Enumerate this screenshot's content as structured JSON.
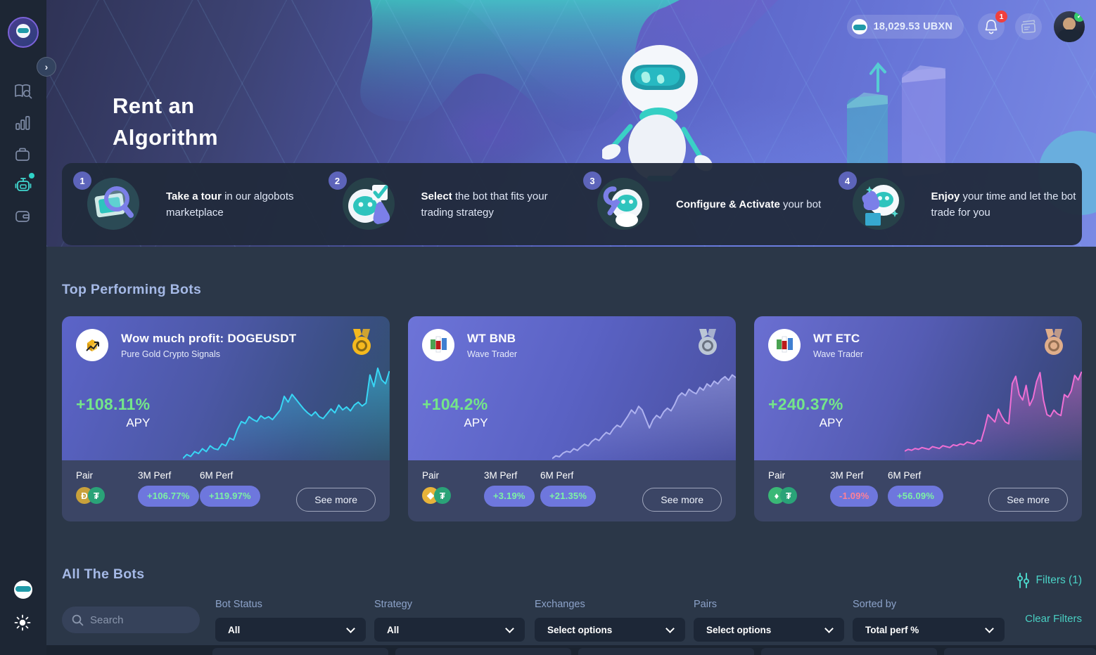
{
  "topbar": {
    "balance": "18,029.53 UBXN",
    "notification_count": "1"
  },
  "header": {
    "title_line1": "Rent an",
    "title_line2": "Algorithm"
  },
  "steps": [
    {
      "num": "1",
      "bold": "Take a tour",
      "rest": " in our algobots marketplace"
    },
    {
      "num": "2",
      "bold": "Select",
      "rest": " the bot that fits your trading strategy"
    },
    {
      "num": "3",
      "bold": "Configure & Activate",
      "rest": " your bot"
    },
    {
      "num": "4",
      "bold": "Enjoy",
      "rest": " your time and let the bot trade for you"
    }
  ],
  "top_bots": {
    "heading": "Top Performing Bots",
    "cards": [
      {
        "title": "Wow much profit: DOGEUSDT",
        "subtitle": "Pure Gold Crypto Signals",
        "apy": "+108.11%",
        "apy_label": "APY",
        "medal": "gold",
        "medal_color": "#f5b91e",
        "pair_label": "Pair",
        "m3_label": "3M Perf",
        "m6_label": "6M Perf",
        "m3": "+106.77%",
        "m6": "+119.97%",
        "see_more": "See more",
        "pair": [
          {
            "name": "doge-coin",
            "glyph": "Ð",
            "bg": "#c9a13b"
          },
          {
            "name": "usdt-coin",
            "glyph": "₮",
            "bg": "#2aa378"
          }
        ]
      },
      {
        "title": "WT BNB",
        "subtitle": "Wave Trader",
        "apy": "+104.2%",
        "apy_label": "APY",
        "medal": "silver",
        "medal_color": "#bcc7d6",
        "pair_label": "Pair",
        "m3_label": "3M Perf",
        "m6_label": "6M Perf",
        "m3": "+3.19%",
        "m6": "+21.35%",
        "see_more": "See more",
        "pair": [
          {
            "name": "bnb-coin",
            "glyph": "◆",
            "bg": "#e8b33a"
          },
          {
            "name": "usdt-coin",
            "glyph": "₮",
            "bg": "#2aa378"
          }
        ]
      },
      {
        "title": "WT ETC",
        "subtitle": "Wave Trader",
        "apy": "+240.37%",
        "apy_label": "APY",
        "medal": "bronze",
        "medal_color": "#e0ae8b",
        "pair_label": "Pair",
        "m3_label": "3M Perf",
        "m6_label": "6M Perf",
        "m3": "-1.09%",
        "m6": "+56.09%",
        "see_more": "See more",
        "pair": [
          {
            "name": "etc-coin",
            "glyph": "♦",
            "bg": "#3ab876"
          },
          {
            "name": "usdt-coin",
            "glyph": "₮",
            "bg": "#2aa378"
          }
        ]
      }
    ]
  },
  "chart_data": [
    {
      "type": "line",
      "name": "DOGEUSDT 6M sparkline",
      "color": "#38d6f5",
      "values": [
        2,
        6,
        4,
        9,
        7,
        12,
        9,
        15,
        12,
        11,
        17,
        15,
        23,
        21,
        32,
        40,
        38,
        45,
        42,
        40,
        46,
        43,
        45,
        42,
        47,
        52,
        66,
        60,
        68,
        63,
        58,
        53,
        49,
        46,
        50,
        45,
        43,
        48,
        53,
        49,
        57,
        52,
        55,
        51,
        57,
        60,
        56,
        59,
        88,
        76,
        95,
        83,
        79,
        92
      ]
    },
    {
      "type": "line",
      "name": "WT BNB 6M sparkline",
      "color": "#aeb2ef",
      "values": [
        2,
        5,
        4,
        8,
        10,
        9,
        13,
        11,
        15,
        18,
        16,
        21,
        24,
        22,
        27,
        31,
        29,
        35,
        39,
        37,
        43,
        49,
        56,
        52,
        60,
        56,
        46,
        36,
        45,
        50,
        47,
        54,
        58,
        55,
        62,
        71,
        75,
        72,
        79,
        76,
        74,
        81,
        78,
        85,
        82,
        88,
        85,
        90,
        93,
        89,
        95,
        92
      ]
    },
    {
      "type": "line",
      "name": "WT ETC 6M sparkline",
      "color": "#ef6fd4",
      "values": [
        10,
        12,
        11,
        13,
        12,
        14,
        13,
        12,
        15,
        14,
        13,
        16,
        15,
        14,
        17,
        16,
        18,
        17,
        20,
        19,
        18,
        22,
        21,
        34,
        50,
        46,
        42,
        56,
        48,
        42,
        40,
        84,
        92,
        72,
        66,
        82,
        60,
        68,
        86,
        96,
        66,
        50,
        48,
        55,
        51,
        49,
        72,
        69,
        76,
        93,
        88,
        97
      ]
    }
  ],
  "all_bots": {
    "heading": "All The Bots",
    "search_placeholder": "Search",
    "filters": [
      {
        "label": "Bot Status",
        "value": "All"
      },
      {
        "label": "Strategy",
        "value": "All"
      },
      {
        "label": "Exchanges",
        "value": "Select options"
      },
      {
        "label": "Pairs",
        "value": "Select options"
      },
      {
        "label": "Sorted by",
        "value": "Total perf %"
      }
    ],
    "filters_button": "Filters (1)",
    "clear_button": "Clear Filters"
  }
}
